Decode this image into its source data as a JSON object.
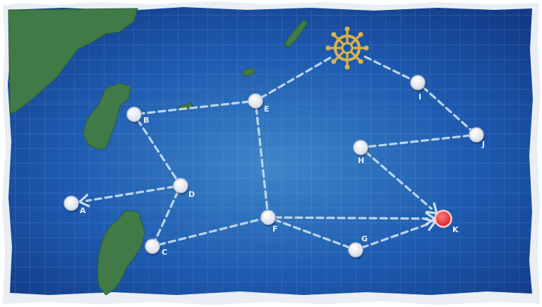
{
  "colors": {
    "ocean_deep": "#123a86",
    "ocean_mid": "#1e5bb0",
    "ocean_light": "#3f86c9",
    "land": "#3f7a47",
    "route": "#c9dff2",
    "node": "#ffffff",
    "boss_node": "#e53a3a",
    "start_icon": "#d9b24a"
  },
  "start": {
    "icon": "ship-wheel-icon"
  },
  "nodes": [
    {
      "id": "A",
      "label": "A",
      "type": "normal"
    },
    {
      "id": "B",
      "label": "B",
      "type": "normal"
    },
    {
      "id": "C",
      "label": "C",
      "type": "normal"
    },
    {
      "id": "D",
      "label": "D",
      "type": "normal"
    },
    {
      "id": "E",
      "label": "E",
      "type": "normal"
    },
    {
      "id": "F",
      "label": "F",
      "type": "normal"
    },
    {
      "id": "G",
      "label": "G",
      "type": "normal"
    },
    {
      "id": "H",
      "label": "H",
      "type": "normal"
    },
    {
      "id": "I",
      "label": "I",
      "type": "normal"
    },
    {
      "id": "J",
      "label": "J",
      "type": "normal"
    },
    {
      "id": "K",
      "label": "K",
      "type": "boss"
    }
  ],
  "routes": [
    {
      "from": "start",
      "to": "E",
      "arrow": false
    },
    {
      "from": "start",
      "to": "I",
      "arrow": false
    },
    {
      "from": "E",
      "to": "B",
      "arrow": false
    },
    {
      "from": "B",
      "to": "D",
      "arrow": false
    },
    {
      "from": "D",
      "to": "A",
      "arrow": true
    },
    {
      "from": "D",
      "to": "C",
      "arrow": false
    },
    {
      "from": "C",
      "to": "F",
      "arrow": false
    },
    {
      "from": "E",
      "to": "F",
      "arrow": false
    },
    {
      "from": "F",
      "to": "K",
      "arrow": true
    },
    {
      "from": "F",
      "to": "G",
      "arrow": false
    },
    {
      "from": "G",
      "to": "K",
      "arrow": true
    },
    {
      "from": "I",
      "to": "J",
      "arrow": false
    },
    {
      "from": "J",
      "to": "H",
      "arrow": false
    },
    {
      "from": "H",
      "to": "K",
      "arrow": true
    }
  ]
}
